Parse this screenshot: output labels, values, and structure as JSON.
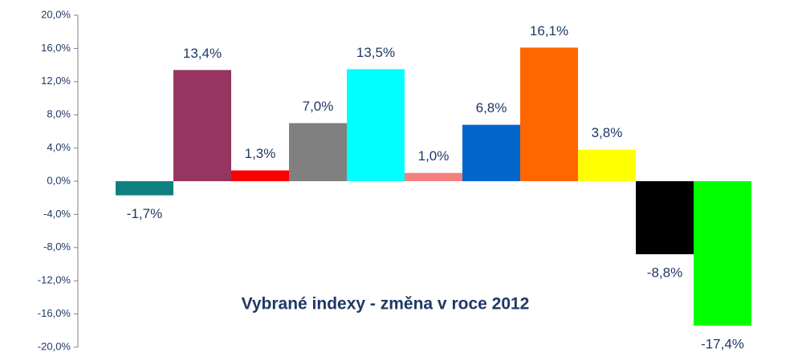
{
  "chart_data": {
    "type": "bar",
    "title": "Vybrané indexy - změna v roce 2012",
    "categories": [
      null,
      null,
      null,
      null,
      null,
      null,
      null,
      null,
      null,
      null,
      null
    ],
    "values": [
      -1.7,
      13.4,
      1.3,
      7.0,
      13.5,
      1.0,
      6.8,
      16.1,
      3.8,
      -8.8,
      -17.4
    ],
    "value_labels": [
      "-1,7%",
      "13,4%",
      "1,3%",
      "7,0%",
      "13,5%",
      "1,0%",
      "6,8%",
      "16,1%",
      "3,8%",
      "-8,8%",
      "-17,4%"
    ],
    "colors": [
      "#0f7f7f",
      "#953560",
      "#ff0000",
      "#808080",
      "#00ffff",
      "#f48080",
      "#0066cc",
      "#ff6600",
      "#ffff00",
      "#000000",
      "#00ff00"
    ],
    "ylim": [
      -20,
      20
    ],
    "yticks": [
      {
        "value": -20,
        "label": "-20,0%"
      },
      {
        "value": -16,
        "label": "-16,0%"
      },
      {
        "value": -12,
        "label": "-12,0%"
      },
      {
        "value": -8,
        "label": "-8,0%"
      },
      {
        "value": -4,
        "label": "-4,0%"
      },
      {
        "value": 0,
        "label": "0,0%"
      },
      {
        "value": 4,
        "label": "4,0%"
      },
      {
        "value": 8,
        "label": "8,0%"
      },
      {
        "value": 12,
        "label": "12,0%"
      },
      {
        "value": 16,
        "label": "16,0%"
      },
      {
        "value": 20,
        "label": "20,0%"
      }
    ]
  }
}
